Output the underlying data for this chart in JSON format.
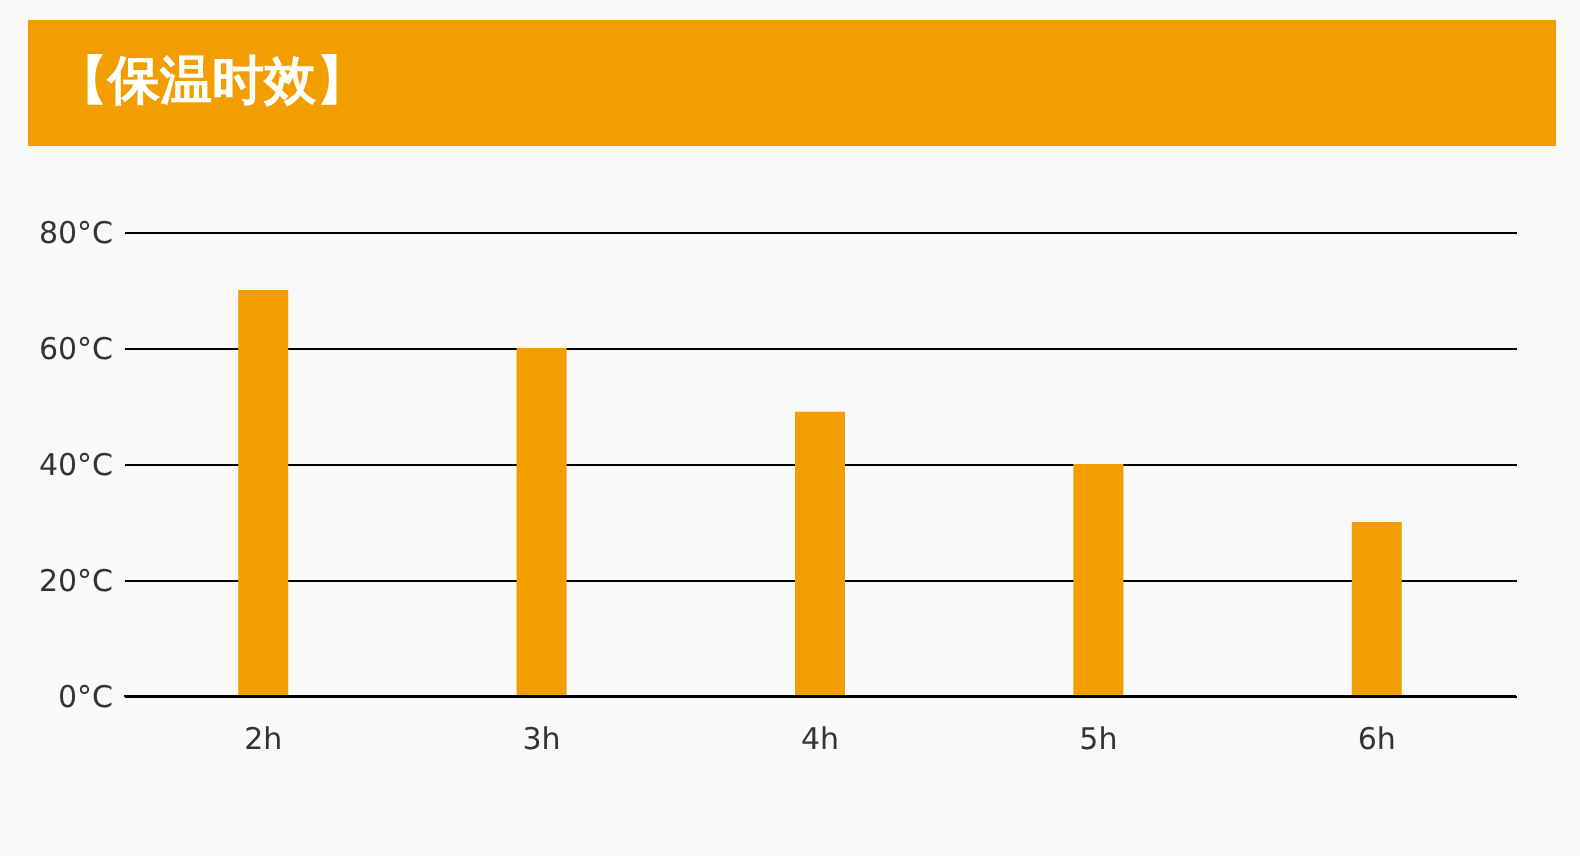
{
  "chart_data": {
    "type": "bar",
    "title": "【保温时效】",
    "categories": [
      "2h",
      "3h",
      "4h",
      "5h",
      "6h"
    ],
    "values": [
      70,
      60,
      49,
      40,
      30
    ],
    "color": "#f29e00",
    "ylim": [
      0,
      80
    ],
    "yticks": [
      {
        "value": 0,
        "label": "0°C"
      },
      {
        "value": 20,
        "label": "20°C"
      },
      {
        "value": 40,
        "label": "40°C"
      },
      {
        "value": 60,
        "label": "60°C"
      },
      {
        "value": 80,
        "label": "80°C"
      }
    ],
    "grid": "y"
  }
}
